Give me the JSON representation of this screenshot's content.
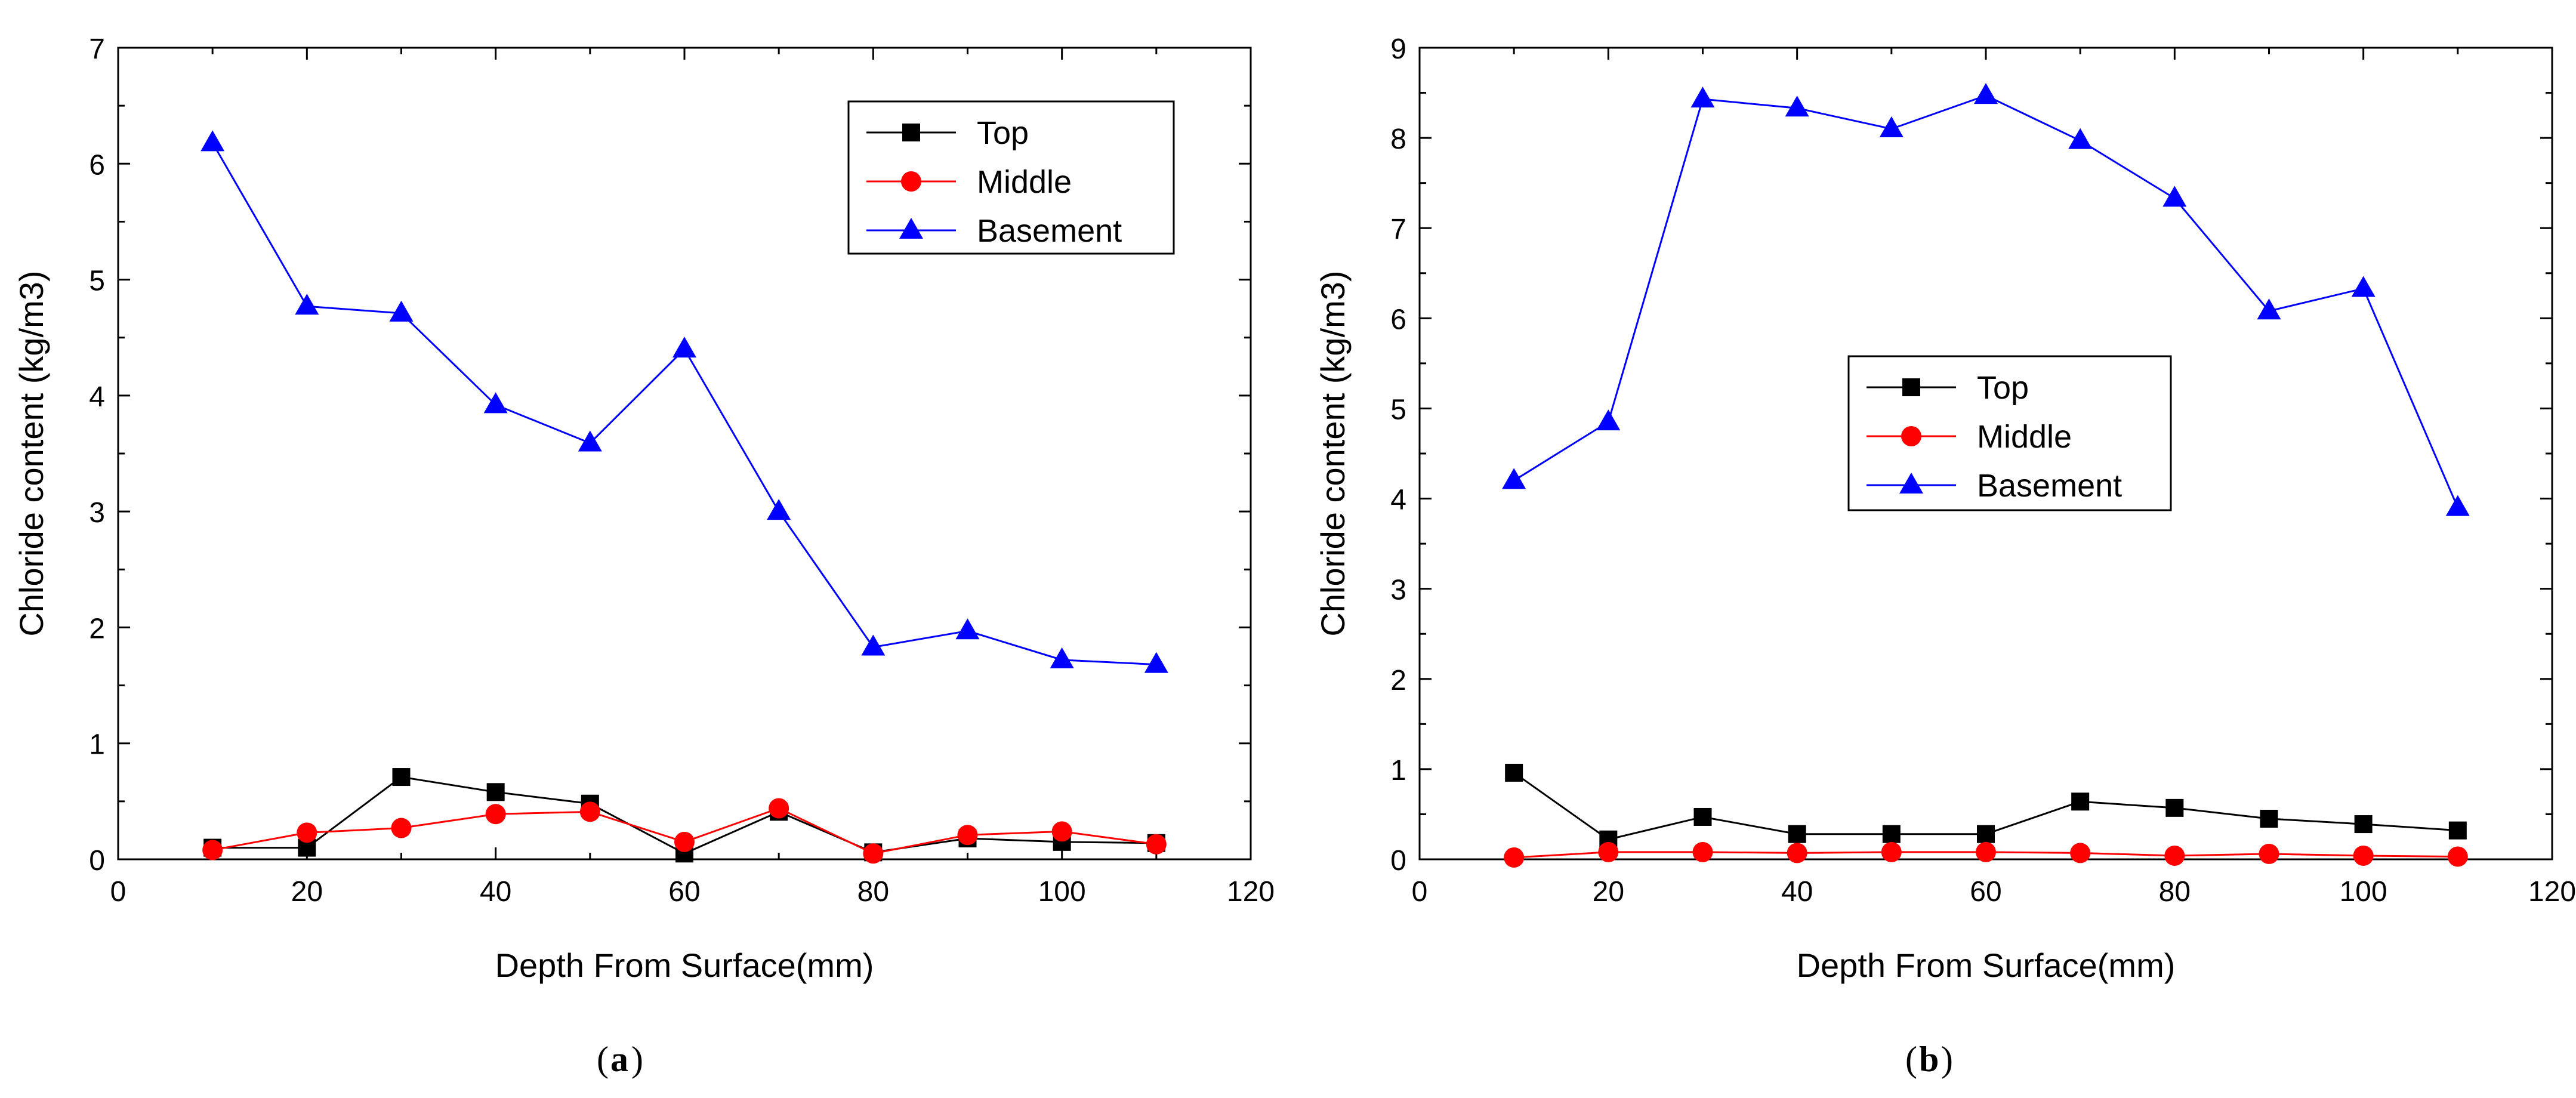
{
  "chart_data": [
    {
      "type": "line",
      "panel_label": "a",
      "title": "",
      "xlabel": "Depth From Surface(mm)",
      "ylabel": "Chloride content (kg/m3)",
      "xlim": [
        0,
        120
      ],
      "ylim": [
        0,
        7
      ],
      "xticks": [
        "0",
        "20",
        "40",
        "60",
        "80",
        "100",
        "120"
      ],
      "yticks": [
        "0",
        "1",
        "2",
        "3",
        "4",
        "5",
        "6",
        "7"
      ],
      "grid": false,
      "legend_position": "top-right",
      "x": [
        10,
        20,
        30,
        40,
        50,
        60,
        70,
        80,
        90,
        100,
        110
      ],
      "series": [
        {
          "name": "Top",
          "color": "#000000",
          "marker": "square",
          "values": [
            0.1,
            0.1,
            0.71,
            0.58,
            0.48,
            0.05,
            0.41,
            0.06,
            0.18,
            0.15,
            0.14
          ]
        },
        {
          "name": "Middle",
          "color": "#ff0000",
          "marker": "circle",
          "values": [
            0.08,
            0.23,
            0.27,
            0.39,
            0.41,
            0.15,
            0.44,
            0.05,
            0.21,
            0.24,
            0.13
          ]
        },
        {
          "name": "Basement",
          "color": "#0000ff",
          "marker": "triangle",
          "values": [
            6.18,
            4.77,
            4.71,
            3.92,
            3.59,
            4.4,
            3.0,
            1.83,
            1.97,
            1.72,
            1.68
          ]
        }
      ]
    },
    {
      "type": "line",
      "panel_label": "b",
      "title": "",
      "xlabel": "Depth From Surface(mm)",
      "ylabel": "Chloride content (kg/m3)",
      "xlim": [
        0,
        120
      ],
      "ylim": [
        0,
        9
      ],
      "xticks": [
        "0",
        "20",
        "40",
        "60",
        "80",
        "100",
        "120"
      ],
      "yticks": [
        "0",
        "1",
        "2",
        "3",
        "4",
        "5",
        "6",
        "7",
        "8",
        "9"
      ],
      "grid": false,
      "legend_position": "center",
      "x": [
        10,
        20,
        30,
        40,
        50,
        60,
        70,
        80,
        90,
        100,
        110
      ],
      "series": [
        {
          "name": "Top",
          "color": "#000000",
          "marker": "square",
          "values": [
            0.96,
            0.22,
            0.47,
            0.28,
            0.28,
            0.28,
            0.64,
            0.57,
            0.45,
            0.39,
            0.32
          ]
        },
        {
          "name": "Middle",
          "color": "#ff0000",
          "marker": "circle",
          "values": [
            0.02,
            0.08,
            0.08,
            0.07,
            0.08,
            0.08,
            0.07,
            0.04,
            0.06,
            0.04,
            0.03
          ]
        },
        {
          "name": "Basement",
          "color": "#0000ff",
          "marker": "triangle",
          "values": [
            4.2,
            4.85,
            8.43,
            8.33,
            8.1,
            8.47,
            7.97,
            7.33,
            6.08,
            6.33,
            3.9
          ]
        }
      ]
    }
  ]
}
